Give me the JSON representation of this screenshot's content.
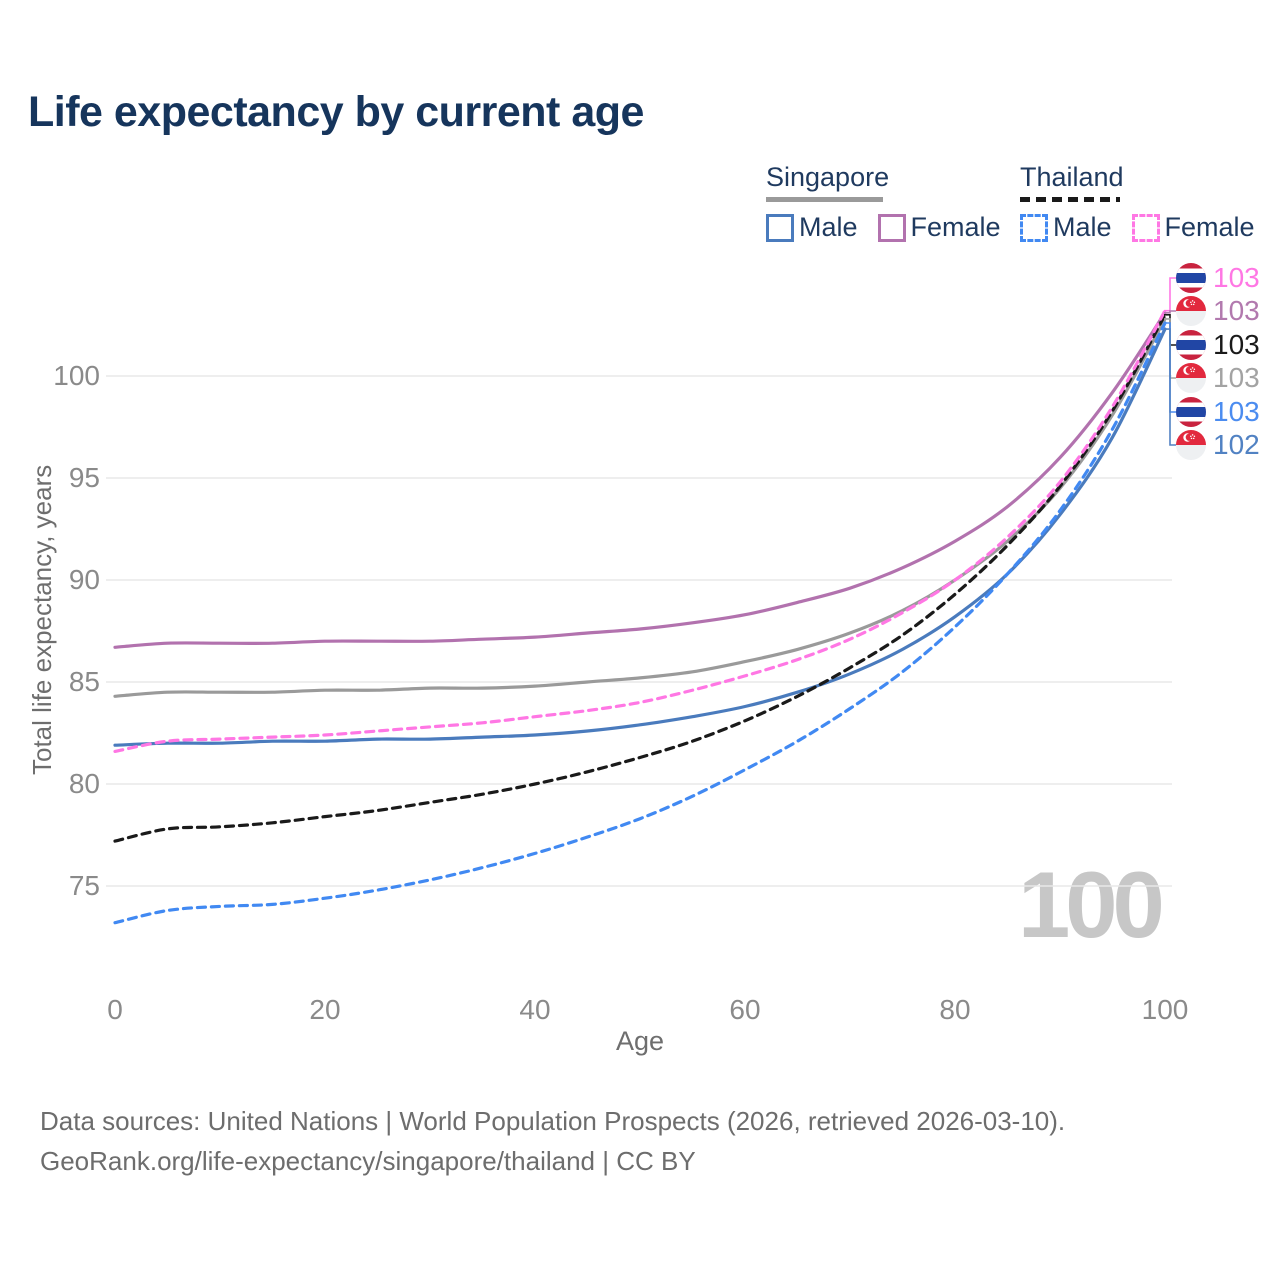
{
  "header": {
    "title": "Life expectancy by current age"
  },
  "legend": {
    "singapore": {
      "label": "Singapore",
      "male": "Male",
      "female": "Female",
      "line_color": "#9a9a9a",
      "style": "solid"
    },
    "thailand": {
      "label": "Thailand",
      "male": "Male",
      "female": "Female",
      "line_color": "#1a1a1a",
      "style": "dashed"
    }
  },
  "axes": {
    "y_title": "Total life expectancy, years",
    "x_title": "Age"
  },
  "watermark": "100",
  "end_labels": [
    {
      "flag": "thailand-flag",
      "value": "103",
      "color": "#ff77e4",
      "series": 4
    },
    {
      "flag": "singapore-flag",
      "value": "103",
      "color": "#b279ae",
      "series": 1
    },
    {
      "flag": "thailand-flag",
      "value": "103",
      "color": "#1a1a1a",
      "series": 5
    },
    {
      "flag": "singapore-flag",
      "value": "103",
      "color": "#a3a3a3",
      "series": 2
    },
    {
      "flag": "thailand-flag",
      "value": "103",
      "color": "#4b8cf0",
      "series": 3
    },
    {
      "flag": "singapore-flag",
      "value": "102",
      "color": "#5182c3",
      "series": 0
    }
  ],
  "footer": {
    "line1": "Data sources: United Nations | World Population Prospects (2026, retrieved 2026-03-10).",
    "line2": "GeoRank.org/life-expectancy/singapore/thailand | CC BY"
  },
  "chart_data": {
    "type": "line",
    "title": "Life expectancy by current age",
    "xlabel": "Age",
    "ylabel": "Total life expectancy, years",
    "xlim": [
      0,
      100
    ],
    "ylim_shown": [
      73,
      103.5
    ],
    "grid": "horizontal",
    "legend_position": "top-right",
    "x_ticks": [
      0,
      20,
      40,
      60,
      80,
      100
    ],
    "y_ticks": [
      100,
      95,
      90,
      85,
      80,
      75
    ],
    "x": [
      0,
      5,
      10,
      15,
      20,
      25,
      30,
      35,
      40,
      45,
      50,
      55,
      60,
      65,
      70,
      75,
      80,
      85,
      90,
      95,
      100
    ],
    "series": [
      {
        "name": "Singapore Male",
        "color": "#4a7bbd",
        "dash": null,
        "values": [
          81.9,
          82.0,
          82.0,
          82.1,
          82.1,
          82.2,
          82.2,
          82.3,
          82.4,
          82.6,
          82.9,
          83.3,
          83.8,
          84.5,
          85.4,
          86.6,
          88.2,
          90.3,
          93.2,
          97.0,
          102.3
        ]
      },
      {
        "name": "Singapore Female",
        "color": "#b272ae",
        "dash": null,
        "values": [
          86.7,
          86.9,
          86.9,
          86.9,
          87.0,
          87.0,
          87.0,
          87.1,
          87.2,
          87.4,
          87.6,
          87.9,
          88.3,
          88.9,
          89.6,
          90.6,
          91.9,
          93.6,
          96.0,
          99.2,
          103.1
        ]
      },
      {
        "name": "Singapore (both sexes)",
        "color": "#9a9a9a",
        "dash": null,
        "values": [
          84.3,
          84.5,
          84.5,
          84.5,
          84.6,
          84.6,
          84.7,
          84.7,
          84.8,
          85.0,
          85.2,
          85.5,
          86.0,
          86.6,
          87.4,
          88.5,
          90.0,
          91.9,
          94.5,
          98.1,
          102.8
        ]
      },
      {
        "name": "Thailand Male",
        "color": "#4189f2",
        "dash": "8 6",
        "values": [
          73.2,
          73.8,
          74.0,
          74.1,
          74.4,
          74.8,
          75.3,
          75.9,
          76.6,
          77.4,
          78.3,
          79.4,
          80.7,
          82.1,
          83.7,
          85.5,
          87.7,
          90.3,
          93.4,
          97.4,
          102.6
        ]
      },
      {
        "name": "Thailand Female",
        "color": "#ff77e4",
        "dash": "8 6",
        "values": [
          81.6,
          82.1,
          82.2,
          82.3,
          82.4,
          82.6,
          82.8,
          83.0,
          83.3,
          83.6,
          84.0,
          84.6,
          85.3,
          86.1,
          87.1,
          88.4,
          90.0,
          92.1,
          94.8,
          98.5,
          103.2
        ]
      },
      {
        "name": "Thailand (both sexes)",
        "color": "#1a1a1a",
        "dash": "8 6",
        "values": [
          77.2,
          77.8,
          77.9,
          78.1,
          78.4,
          78.7,
          79.1,
          79.5,
          80.0,
          80.6,
          81.3,
          82.1,
          83.1,
          84.3,
          85.7,
          87.3,
          89.3,
          91.7,
          94.6,
          98.3,
          103.0
        ]
      }
    ]
  }
}
